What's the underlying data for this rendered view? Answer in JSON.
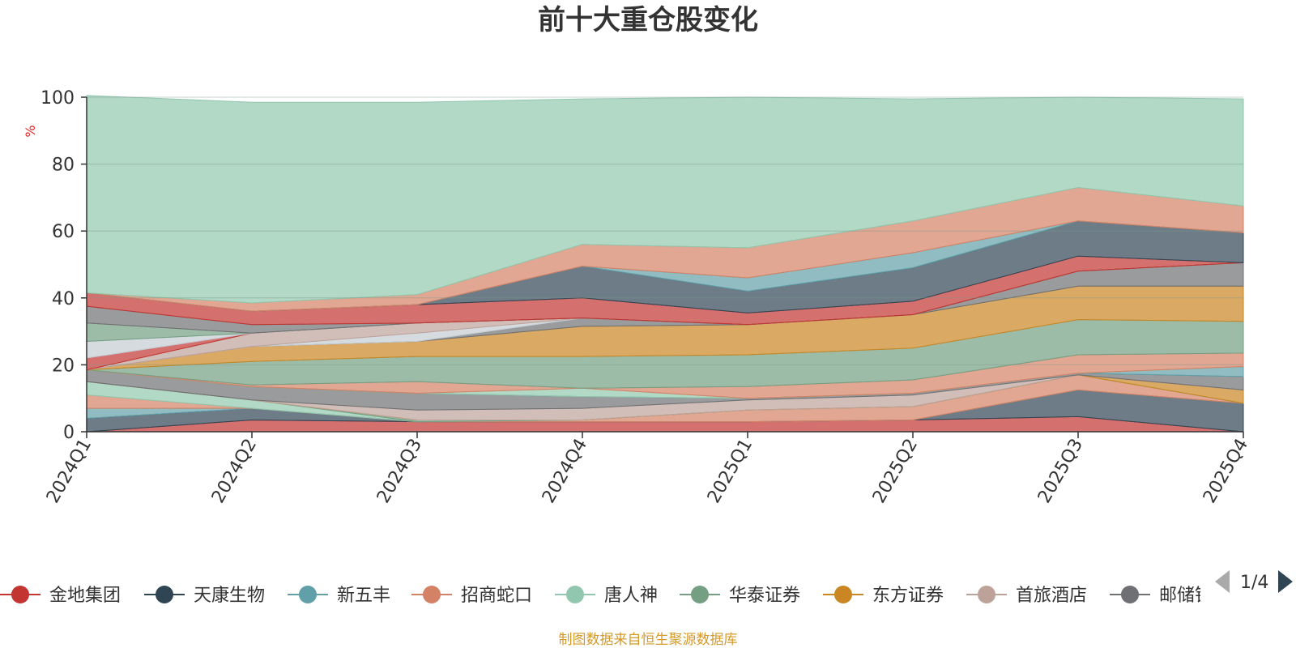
{
  "chart_data": {
    "type": "area",
    "stacked": true,
    "title": "前十大重仓股变化",
    "ylabel": "%",
    "ylim": [
      0,
      100
    ],
    "yticks": [
      0,
      20,
      40,
      60,
      80,
      100
    ],
    "grid": true,
    "categories": [
      "2024Q1",
      "2024Q2",
      "2024Q3",
      "2024Q4",
      "2025Q1",
      "2025Q2",
      "2025Q3",
      "2025Q4"
    ],
    "series": [
      {
        "name": "金地集团",
        "color": "#c23531",
        "values": [
          0,
          3.5,
          3,
          3,
          3,
          3.5,
          4.5,
          0
        ]
      },
      {
        "name": "天康生物",
        "color": "#2f4554",
        "values": [
          4,
          3.5,
          0,
          0,
          0,
          0,
          8,
          8.5
        ]
      },
      {
        "name": "新五丰",
        "color": "#61a0a8",
        "values": [
          3,
          0,
          0,
          0,
          0,
          0,
          0,
          0
        ]
      },
      {
        "name": "招商蛇口",
        "color": "#d48265",
        "values": [
          4,
          0,
          0,
          0.5,
          3.5,
          4,
          4.5,
          0
        ]
      },
      {
        "name": "唐人神",
        "color": "#91c7ae",
        "values": [
          4,
          2.5,
          0,
          0,
          0,
          0,
          0,
          0
        ]
      },
      {
        "name": "华泰证券",
        "color": "#749f83",
        "values": [
          0,
          0,
          0.5,
          0,
          0,
          0,
          0,
          0
        ]
      },
      {
        "name": "东方证券",
        "color": "#ca8622",
        "values": [
          0,
          0,
          0,
          0,
          0,
          0,
          0,
          4
        ]
      },
      {
        "name": "首旅酒店",
        "color": "#bda29a",
        "values": [
          0,
          0,
          3,
          3.5,
          3,
          3.5,
          0,
          0
        ]
      },
      {
        "name": "邮储银行",
        "color": "#6e7074",
        "values": [
          3.5,
          4,
          5,
          3.5,
          0.5,
          0.5,
          0.5,
          4
        ]
      },
      {
        "name": "",
        "color": "#61a0a8",
        "values": [
          0,
          0,
          0,
          0,
          0,
          0,
          0,
          3
        ]
      },
      {
        "name": "",
        "color": "#91c7ae",
        "values": [
          0,
          0,
          0,
          2.5,
          0,
          0,
          0,
          0
        ]
      },
      {
        "name": "",
        "color": "#d48265",
        "values": [
          0,
          0.5,
          3.5,
          0,
          3.5,
          4,
          5.5,
          4
        ]
      },
      {
        "name": "",
        "color": "#749f83",
        "values": [
          0,
          7,
          7.5,
          9.5,
          9.5,
          9.5,
          10.5,
          9.5
        ]
      },
      {
        "name": "",
        "color": "#ca8622",
        "values": [
          0,
          4.5,
          4.5,
          9,
          9,
          10,
          10,
          10.5
        ]
      },
      {
        "name": "",
        "color": "#6e7074",
        "values": [
          0,
          0,
          0,
          2.5,
          0,
          0,
          4.5,
          7
        ]
      },
      {
        "name": "",
        "color": "#c4ccd3",
        "values": [
          0,
          0,
          2.5,
          0,
          0,
          0,
          0,
          0
        ]
      },
      {
        "name": "",
        "color": "#bda29a",
        "values": [
          0,
          4,
          3,
          0,
          0,
          0,
          0,
          0
        ]
      },
      {
        "name": "",
        "color": "#c23531",
        "values": [
          3.5,
          0,
          0,
          0,
          0,
          0,
          0,
          0
        ]
      },
      {
        "name": "",
        "color": "#c4ccd3",
        "values": [
          5,
          0,
          0,
          0,
          0,
          0,
          0,
          0
        ]
      },
      {
        "name": "",
        "color": "#749f83",
        "values": [
          5.5,
          0,
          0,
          0,
          0,
          0,
          0,
          0
        ]
      },
      {
        "name": "",
        "color": "#bda29a",
        "values": [
          0,
          0,
          0,
          0,
          0,
          0,
          0,
          0
        ]
      },
      {
        "name": "",
        "color": "#6e7074",
        "values": [
          5,
          2.5,
          0,
          0,
          0,
          0,
          0,
          0
        ]
      },
      {
        "name": "",
        "color": "#c23531",
        "values": [
          4,
          4,
          5.5,
          6,
          3.5,
          4,
          4.5,
          0
        ]
      },
      {
        "name": "",
        "color": "#2f4554",
        "values": [
          0,
          0,
          0,
          9.5,
          6.5,
          10,
          10.5,
          9
        ]
      },
      {
        "name": "",
        "color": "#61a0a8",
        "values": [
          0,
          0,
          0,
          0,
          4,
          4.5,
          0,
          0
        ]
      },
      {
        "name": "",
        "color": "#d48265",
        "values": [
          0,
          2.5,
          3,
          6.5,
          9,
          9.5,
          10,
          8
        ]
      },
      {
        "name": "",
        "color": "#91c7ae",
        "values": [
          59,
          60,
          57.5,
          43.5,
          45,
          36.5,
          27,
          32
        ]
      }
    ],
    "legend": {
      "placement": "bottom",
      "page": "1/4"
    },
    "source_note": "制图数据来自恒生聚源数据库"
  }
}
